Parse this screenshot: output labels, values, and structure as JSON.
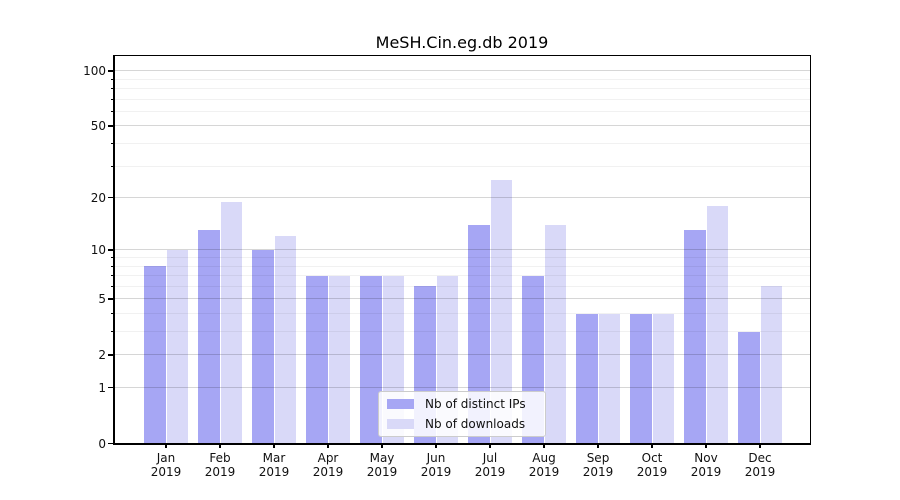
{
  "figure": {
    "title": "MeSH.Cin.eg.db 2019",
    "background": "#ffffff"
  },
  "chart_data": {
    "type": "bar",
    "title": "MeSH.Cin.eg.db 2019",
    "categories": [
      "Jan 2019",
      "Feb 2019",
      "Mar 2019",
      "Apr 2019",
      "May 2019",
      "Jun 2019",
      "Jul 2019",
      "Aug 2019",
      "Sep 2019",
      "Oct 2019",
      "Nov 2019",
      "Dec 2019"
    ],
    "x_tick_months": [
      "Jan",
      "Feb",
      "Mar",
      "Apr",
      "May",
      "Jun",
      "Jul",
      "Aug",
      "Sep",
      "Oct",
      "Nov",
      "Dec"
    ],
    "x_tick_year": "2019",
    "series": [
      {
        "name": "Nb of distinct IPs",
        "color": "#a6a6f4",
        "values": [
          8,
          13,
          10,
          7,
          7,
          6,
          14,
          7,
          4,
          4,
          13,
          3
        ]
      },
      {
        "name": "Nb of downloads",
        "color": "#d9d9f8",
        "values": [
          10,
          19,
          12,
          7,
          7,
          7,
          25,
          14,
          4,
          4,
          18,
          6
        ]
      }
    ],
    "yscale": "log1p",
    "ylim": [
      0,
      100
    ],
    "y_major_ticks": [
      0,
      1,
      2,
      5,
      10,
      20,
      50,
      100
    ],
    "y_minor_ticks": [
      3,
      4,
      6,
      7,
      8,
      9,
      30,
      40,
      60,
      70,
      80,
      90
    ],
    "grid": true,
    "legend_position": "lower center"
  },
  "legend": {
    "items": [
      {
        "label": "Nb of distinct IPs"
      },
      {
        "label": "Nb of downloads"
      }
    ]
  }
}
